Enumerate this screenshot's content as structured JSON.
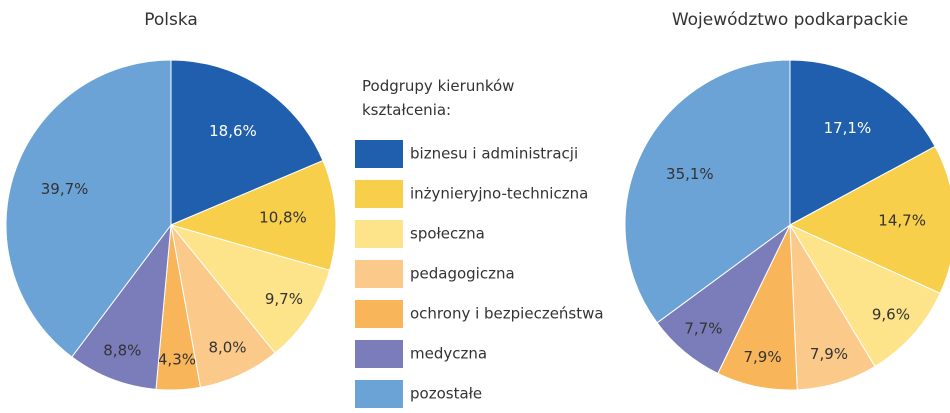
{
  "chart_data": [
    {
      "type": "pie",
      "title": "Polska",
      "legend_title": "Podgrupy kierunków kształcenia:",
      "categories": [
        "biznesu i administracji",
        "inżynieryjno-techniczna",
        "społeczna",
        "pedagogiczna",
        "ochrony i bezpieczeństwa",
        "medyczna",
        "pozostałe"
      ],
      "colors": [
        "#1f5fad",
        "#f7cf4b",
        "#fde38a",
        "#fbc98a",
        "#f8b55a",
        "#7b7dbb",
        "#6ba3d6"
      ],
      "values": [
        18.6,
        10.8,
        9.7,
        8.0,
        4.3,
        8.8,
        39.7
      ],
      "value_labels": [
        "18,6%",
        "10,8%",
        "9,7%",
        "8,0%",
        "4,3%",
        "8,8%",
        "39,7%"
      ]
    },
    {
      "type": "pie",
      "title": "Województwo podkarpackie",
      "values": [
        17.1,
        14.7,
        9.6,
        7.9,
        7.9,
        7.7,
        35.1
      ],
      "value_labels": [
        "17,1%",
        "14,7%",
        "9,6%",
        "7,9%",
        "7,9%",
        "7,7%",
        "35,1%"
      ]
    }
  ]
}
